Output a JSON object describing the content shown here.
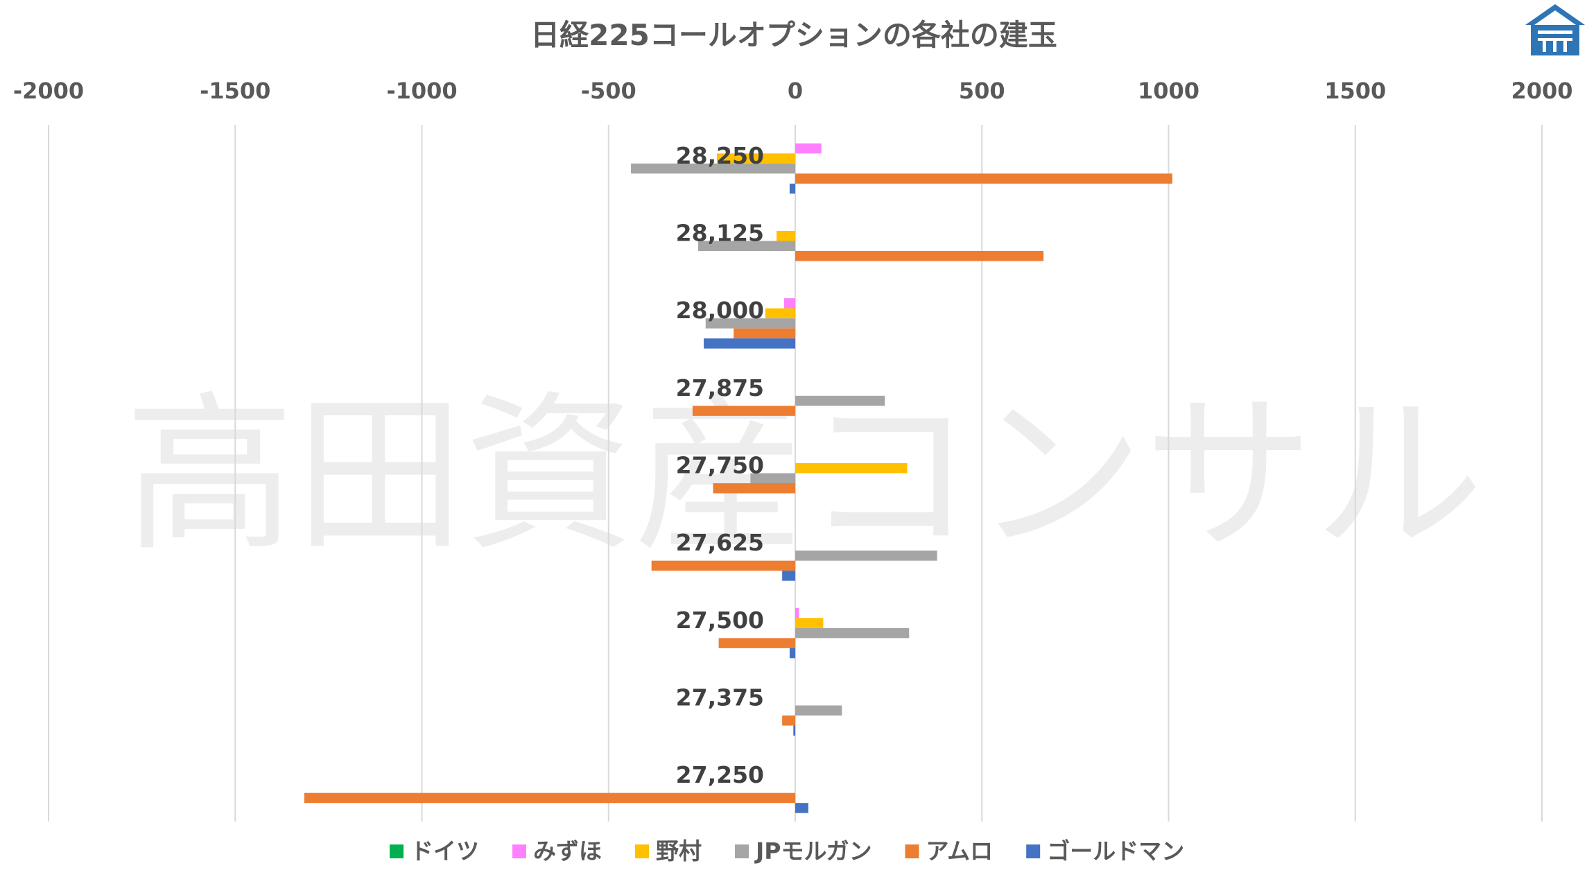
{
  "watermark": "高田資産コンサル",
  "chart_data": {
    "type": "bar",
    "orientation": "horizontal",
    "title": "日経225コールオプションの各社の建玉",
    "xlim": [
      -2000,
      2000
    ],
    "x_ticks": [
      "-2000",
      "-1500",
      "-1000",
      "-500",
      "0",
      "500",
      "1000",
      "1500",
      "2000"
    ],
    "x_tick_values": [
      -2000,
      -1500,
      -1000,
      -500,
      0,
      500,
      1000,
      1500,
      2000
    ],
    "grid": true,
    "legend_position": "bottom",
    "categories": [
      "28,250",
      "28,125",
      "28,000",
      "27,875",
      "27,750",
      "27,625",
      "27,500",
      "27,375",
      "27,250"
    ],
    "series": [
      {
        "name": "ドイツ",
        "color": "#00B050",
        "values": [
          0,
          0,
          0,
          0,
          0,
          0,
          0,
          0,
          0
        ]
      },
      {
        "name": "みずほ",
        "color": "#FF80FF",
        "values": [
          70,
          0,
          -30,
          0,
          0,
          0,
          10,
          0,
          0
        ]
      },
      {
        "name": "野村",
        "color": "#FFC000",
        "values": [
          -210,
          -50,
          -80,
          0,
          300,
          0,
          75,
          0,
          0
        ]
      },
      {
        "name": "JPモルガン",
        "color": "#A5A5A5",
        "values": [
          -440,
          -260,
          -240,
          240,
          -120,
          380,
          305,
          125,
          0
        ]
      },
      {
        "name": "アムロ",
        "color": "#ED7D31",
        "values": [
          1010,
          665,
          -165,
          -275,
          -220,
          -385,
          -205,
          -35,
          -1315
        ]
      },
      {
        "name": "ゴールドマン",
        "color": "#4472C4",
        "values": [
          -15,
          0,
          -245,
          0,
          0,
          -35,
          -15,
          -5,
          35
        ]
      }
    ]
  }
}
